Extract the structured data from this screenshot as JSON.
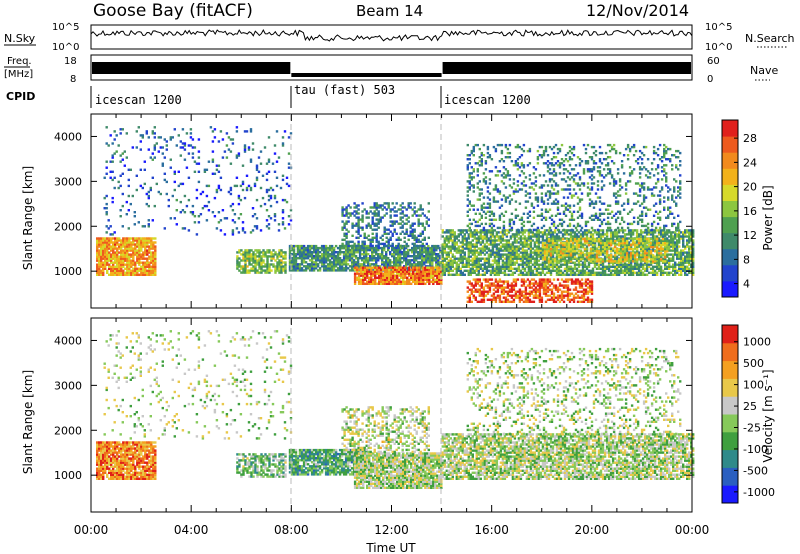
{
  "header": {
    "station": "Goose Bay (fitACF)",
    "beam": "Beam 14",
    "date": "12/Nov/2014"
  },
  "panel_labels": {
    "nsky": "N.Sky",
    "nsearch": "N.Search",
    "freq_line1": "Freq.",
    "freq_line2": "[MHz]",
    "nave": "Nave",
    "cpid": "CPID",
    "nsky_ticks": [
      "10^5",
      "10^0"
    ],
    "nsearch_ticks": [
      "10^5",
      "10^0"
    ],
    "freq_ticks": [
      "18",
      "8"
    ],
    "nave_ticks": [
      "60",
      "0"
    ]
  },
  "cpid_segments": [
    {
      "label": "icescan 1200",
      "start_hour": 0,
      "end_hour": 8
    },
    {
      "label": "tau (fast) 503",
      "start_hour": 8,
      "end_hour": 14
    },
    {
      "label": "icescan 1200",
      "start_hour": 14,
      "end_hour": 24
    }
  ],
  "colors": {
    "power_scale": [
      "#1a1aff",
      "#2244cc",
      "#2b6e9e",
      "#3f8a6a",
      "#4fa050",
      "#8cc63f",
      "#d6d92a",
      "#f2b21b",
      "#f28a1d",
      "#ee5a1e",
      "#e0201c"
    ],
    "velocity_scale": [
      "#1a1aff",
      "#2a5fc0",
      "#2f8a8a",
      "#3f9f3f",
      "#86c95a",
      "#c8c8c8",
      "#e8c84a",
      "#f4a020",
      "#ef6d1c",
      "#e02018"
    ]
  },
  "chart_data": [
    {
      "type": "heatmap",
      "name": "power",
      "xlabel": "",
      "ylabel": "Slant Range [km]",
      "xlim": [
        0,
        24
      ],
      "ylim": [
        180,
        4500
      ],
      "yticks": [
        "4000",
        "3000",
        "2000",
        "1000"
      ],
      "colorbar": {
        "label": "Power [dB]",
        "ticks": [
          "28",
          "24",
          "20",
          "16",
          "12",
          "8",
          "4"
        ],
        "range": [
          0,
          30
        ]
      },
      "blobs": [
        {
          "t0": 0.2,
          "t1": 2.6,
          "r0": 900,
          "r1": 1750,
          "value": 22,
          "density": 0.9
        },
        {
          "t0": 5.8,
          "t1": 7.8,
          "r0": 950,
          "r1": 1450,
          "value": 14,
          "density": 0.7
        },
        {
          "t0": 7.9,
          "t1": 14.0,
          "r0": 1000,
          "r1": 1550,
          "value": 10,
          "density": 0.85
        },
        {
          "t0": 10.5,
          "t1": 14.0,
          "r0": 700,
          "r1": 1100,
          "value": 24,
          "density": 0.9
        },
        {
          "t0": 10.0,
          "t1": 13.5,
          "r0": 1500,
          "r1": 2500,
          "value": 8,
          "density": 0.35
        },
        {
          "t0": 14.0,
          "t1": 24.0,
          "r0": 900,
          "r1": 1900,
          "value": 12,
          "density": 0.75
        },
        {
          "t0": 15.0,
          "t1": 20.0,
          "r0": 300,
          "r1": 800,
          "value": 26,
          "density": 0.6
        },
        {
          "t0": 15.0,
          "t1": 23.5,
          "r0": 1900,
          "r1": 3800,
          "value": 9,
          "density": 0.22
        },
        {
          "t0": 0.5,
          "t1": 8.0,
          "r0": 1800,
          "r1": 4200,
          "value": 6,
          "density": 0.08
        },
        {
          "t0": 18.0,
          "t1": 23.0,
          "r0": 1200,
          "r1": 1700,
          "value": 18,
          "density": 0.5
        }
      ]
    },
    {
      "type": "heatmap",
      "name": "velocity",
      "xlabel": "Time UT",
      "ylabel": "Slant Range [km]",
      "xlim": [
        0,
        24
      ],
      "ylim": [
        180,
        4500
      ],
      "xticks": [
        "00:00",
        "04:00",
        "08:00",
        "12:00",
        "16:00",
        "20:00",
        "00:00"
      ],
      "yticks": [
        "4000",
        "3000",
        "2000",
        "1000"
      ],
      "colorbar": {
        "label": "Velocity [m s⁻¹]",
        "ticks": [
          "1000",
          "500",
          "100",
          "25",
          "-25",
          "-100",
          "-500",
          "-1000"
        ],
        "range": [
          -1000,
          1000
        ]
      },
      "blobs": [
        {
          "t0": 0.2,
          "t1": 2.6,
          "r0": 900,
          "r1": 1750,
          "value": 600,
          "density": 0.9
        },
        {
          "t0": 5.8,
          "t1": 7.8,
          "r0": 950,
          "r1": 1450,
          "value": -150,
          "density": 0.6
        },
        {
          "t0": 7.9,
          "t1": 11.0,
          "r0": 1000,
          "r1": 1550,
          "value": -300,
          "density": 0.85
        },
        {
          "t0": 10.5,
          "t1": 14.0,
          "r0": 700,
          "r1": 1500,
          "value": 0,
          "density": 0.9
        },
        {
          "t0": 10.0,
          "t1": 13.5,
          "r0": 1500,
          "r1": 2500,
          "value": 60,
          "density": 0.35
        },
        {
          "t0": 14.0,
          "t1": 24.0,
          "r0": 900,
          "r1": 1900,
          "value": 0,
          "density": 0.75
        },
        {
          "t0": 15.0,
          "t1": 23.5,
          "r0": 1900,
          "r1": 3800,
          "value": 0,
          "density": 0.2
        },
        {
          "t0": 0.5,
          "t1": 8.0,
          "r0": 1800,
          "r1": 4200,
          "value": 10,
          "density": 0.07
        }
      ]
    }
  ]
}
